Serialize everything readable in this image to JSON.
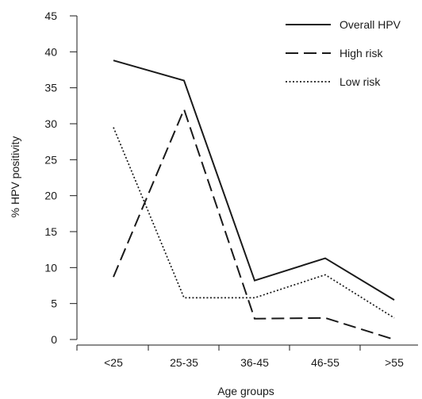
{
  "chart_data": {
    "type": "line",
    "title": "",
    "xlabel": "Age groups",
    "ylabel": "% HPV positivity",
    "categories": [
      "<25",
      "25-35",
      "36-45",
      "46-55",
      ">55"
    ],
    "ylim": [
      0,
      45
    ],
    "yticks": [
      0,
      5,
      10,
      15,
      20,
      25,
      30,
      35,
      40,
      45
    ],
    "grid": false,
    "legend_position": "top-right",
    "series": [
      {
        "name": "Overall HPV",
        "values": [
          38.8,
          36.0,
          8.2,
          11.3,
          5.5
        ],
        "color": "#1a1a1a",
        "style": "solid"
      },
      {
        "name": "High risk",
        "values": [
          8.7,
          32.0,
          2.9,
          3.0,
          0.0
        ],
        "color": "#1a1a1a",
        "style": "dashed"
      },
      {
        "name": "Low risk",
        "values": [
          29.5,
          5.8,
          5.8,
          9.0,
          3.0
        ],
        "color": "#1a1a1a",
        "style": "dotted"
      }
    ]
  }
}
